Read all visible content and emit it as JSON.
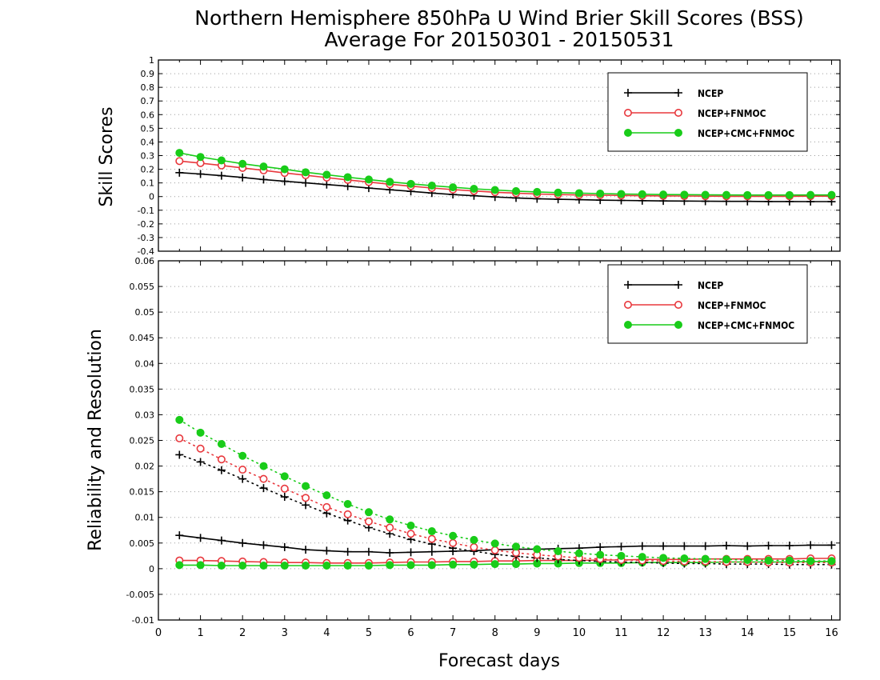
{
  "title_line1": "Northern Hemisphere 850hPa U Wind Brier Skill Scores (BSS)",
  "title_line2": "Average For 20150301 - 20150531",
  "xlabel": "Forecast days",
  "chart_data": [
    {
      "type": "line",
      "ylabel": "Skill Scores",
      "ylim": [
        -0.4,
        1
      ],
      "xlim": [
        0,
        16.2
      ],
      "y_ticks": [
        "-0.4",
        "-0.3",
        "-0.2",
        "-0.1",
        "0",
        "0.1",
        "0.2",
        "0.3",
        "0.4",
        "0.5",
        "0.6",
        "0.7",
        "0.8",
        "0.9",
        "1"
      ],
      "grid": true,
      "legend_position": "top-right",
      "x": [
        0.5,
        1,
        1.5,
        2,
        2.5,
        3,
        3.5,
        4,
        4.5,
        5,
        5.5,
        6,
        6.5,
        7,
        7.5,
        8,
        8.5,
        9,
        9.5,
        10,
        10.5,
        11,
        11.5,
        12,
        12.5,
        13,
        13.5,
        14,
        14.5,
        15,
        15.5,
        16
      ],
      "series": [
        {
          "name": "NCEP",
          "color": "#000000",
          "marker": "plus",
          "values": [
            0.175,
            0.165,
            0.153,
            0.14,
            0.125,
            0.112,
            0.1,
            0.088,
            0.076,
            0.062,
            0.05,
            0.038,
            0.026,
            0.015,
            0.006,
            -0.003,
            -0.01,
            -0.016,
            -0.02,
            -0.023,
            -0.026,
            -0.028,
            -0.03,
            -0.032,
            -0.033,
            -0.034,
            -0.035,
            -0.035,
            -0.036,
            -0.036,
            -0.037,
            -0.037
          ]
        },
        {
          "name": "NCEP+FNMOC",
          "color": "#e8383d",
          "marker": "open-circle",
          "values": [
            0.26,
            0.245,
            0.228,
            0.21,
            0.192,
            0.173,
            0.156,
            0.139,
            0.122,
            0.106,
            0.09,
            0.076,
            0.063,
            0.051,
            0.041,
            0.032,
            0.025,
            0.019,
            0.015,
            0.012,
            0.01,
            0.008,
            0.006,
            0.005,
            0.004,
            0.003,
            0.002,
            0.002,
            0.002,
            0.002,
            0.003,
            0.003
          ]
        },
        {
          "name": "NCEP+CMC+FNMOC",
          "color": "#19cc19",
          "marker": "filled-circle",
          "values": [
            0.32,
            0.29,
            0.265,
            0.24,
            0.22,
            0.2,
            0.178,
            0.16,
            0.142,
            0.125,
            0.108,
            0.093,
            0.08,
            0.068,
            0.057,
            0.048,
            0.04,
            0.034,
            0.029,
            0.025,
            0.022,
            0.019,
            0.017,
            0.015,
            0.014,
            0.013,
            0.012,
            0.011,
            0.011,
            0.011,
            0.012,
            0.012
          ]
        }
      ]
    },
    {
      "type": "line",
      "ylabel": "Reliability and Resolution",
      "ylim": [
        -0.01,
        0.06
      ],
      "xlim": [
        0,
        16.2
      ],
      "y_ticks": [
        "-0.01",
        "-0.005",
        "0",
        "0.005",
        "0.01",
        "0.015",
        "0.02",
        "0.025",
        "0.03",
        "0.035",
        "0.04",
        "0.045",
        "0.05",
        "0.055",
        "0.06"
      ],
      "grid": true,
      "legend_position": "top-right",
      "x": [
        0.5,
        1,
        1.5,
        2,
        2.5,
        3,
        3.5,
        4,
        4.5,
        5,
        5.5,
        6,
        6.5,
        7,
        7.5,
        8,
        8.5,
        9,
        9.5,
        10,
        10.5,
        11,
        11.5,
        12,
        12.5,
        13,
        13.5,
        14,
        14.5,
        15,
        15.5,
        16
      ],
      "series": [
        {
          "name": "NCEP",
          "color": "#000000",
          "marker": "plus",
          "line": "solid",
          "values": [
            0.0065,
            0.006,
            0.0055,
            0.005,
            0.0046,
            0.0042,
            0.0037,
            0.0035,
            0.0033,
            0.0033,
            0.0031,
            0.0032,
            0.0033,
            0.0034,
            0.0035,
            0.0037,
            0.0038,
            0.0038,
            0.0039,
            0.004,
            0.0042,
            0.0043,
            0.0044,
            0.0044,
            0.0044,
            0.0044,
            0.0045,
            0.0044,
            0.0045,
            0.0045,
            0.0046,
            0.0046
          ]
        },
        {
          "name": "NCEP+FNMOC",
          "color": "#e8383d",
          "marker": "open-circle",
          "line": "solid",
          "values": [
            0.0016,
            0.0016,
            0.0015,
            0.0014,
            0.0013,
            0.0012,
            0.0012,
            0.0011,
            0.0011,
            0.0011,
            0.0012,
            0.0013,
            0.0013,
            0.0014,
            0.0014,
            0.0015,
            0.0015,
            0.0016,
            0.0016,
            0.0016,
            0.0017,
            0.0017,
            0.0018,
            0.0018,
            0.0018,
            0.0019,
            0.0019,
            0.0019,
            0.0019,
            0.0019,
            0.002,
            0.002
          ]
        },
        {
          "name": "NCEP+CMC+FNMOC",
          "color": "#19cc19",
          "marker": "filled-circle",
          "line": "solid",
          "values": [
            0.0007,
            0.0007,
            0.0006,
            0.0006,
            0.0006,
            0.0006,
            0.0006,
            0.0006,
            0.0006,
            0.0006,
            0.0007,
            0.0007,
            0.0007,
            0.0008,
            0.0008,
            0.0009,
            0.0009,
            0.001,
            0.001,
            0.0011,
            0.0011,
            0.0011,
            0.0012,
            0.0012,
            0.0012,
            0.0012,
            0.0013,
            0.0013,
            0.0013,
            0.0013,
            0.0014,
            0.0014
          ]
        },
        {
          "name": "",
          "color": "#000000",
          "marker": "plus",
          "line": "dotted",
          "values": [
            0.0222,
            0.0208,
            0.0192,
            0.0175,
            0.0157,
            0.014,
            0.0124,
            0.0108,
            0.0094,
            0.008,
            0.0068,
            0.0057,
            0.0048,
            0.004,
            0.0034,
            0.0028,
            0.0024,
            0.0021,
            0.0018,
            0.0016,
            0.0014,
            0.0013,
            0.0012,
            0.0011,
            0.001,
            0.001,
            0.0009,
            0.0009,
            0.0009,
            0.0008,
            0.0008,
            0.0008
          ]
        },
        {
          "name": "",
          "color": "#e8383d",
          "marker": "open-circle",
          "line": "dotted",
          "values": [
            0.0254,
            0.0234,
            0.0213,
            0.0193,
            0.0175,
            0.0156,
            0.0138,
            0.012,
            0.0106,
            0.0092,
            0.008,
            0.0068,
            0.0058,
            0.005,
            0.0042,
            0.0036,
            0.0031,
            0.0027,
            0.0024,
            0.0021,
            0.0019,
            0.0017,
            0.0016,
            0.0015,
            0.0014,
            0.0014,
            0.0013,
            0.0013,
            0.0012,
            0.0012,
            0.0012,
            0.0012
          ]
        },
        {
          "name": "",
          "color": "#19cc19",
          "marker": "filled-circle",
          "line": "dotted",
          "values": [
            0.029,
            0.0265,
            0.0243,
            0.022,
            0.02,
            0.018,
            0.0161,
            0.0143,
            0.0126,
            0.011,
            0.0096,
            0.0084,
            0.0073,
            0.0064,
            0.0056,
            0.0049,
            0.0043,
            0.0038,
            0.0034,
            0.003,
            0.0027,
            0.0025,
            0.0023,
            0.0021,
            0.002,
            0.0019,
            0.0018,
            0.0017,
            0.0016,
            0.0016,
            0.0015,
            0.0015
          ]
        }
      ]
    }
  ],
  "x_ticks": [
    "0",
    "1",
    "2",
    "3",
    "4",
    "5",
    "6",
    "7",
    "8",
    "9",
    "10",
    "11",
    "12",
    "13",
    "14",
    "15",
    "16"
  ]
}
